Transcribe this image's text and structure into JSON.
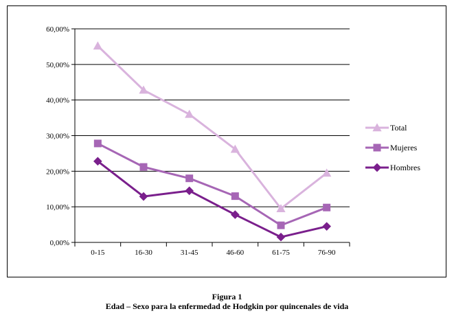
{
  "chart_data": {
    "type": "line",
    "categories": [
      "0-15",
      "16-30",
      "31-45",
      "46-60",
      "61-75",
      "76-90"
    ],
    "y_ticks": [
      "0,00%",
      "10,00%",
      "20,00%",
      "30,00%",
      "40,00%",
      "50,00%",
      "60,00%"
    ],
    "ylim": [
      0,
      60
    ],
    "grid": true,
    "legend_position": "right",
    "series": [
      {
        "name": "Total",
        "marker": "triangle",
        "color": "#d9b3dd",
        "values": [
          55.2,
          42.8,
          36.0,
          26.2,
          9.5,
          19.5
        ]
      },
      {
        "name": "Mujeres",
        "marker": "square",
        "color": "#a666b5",
        "values": [
          27.8,
          21.2,
          18.0,
          13.0,
          4.8,
          9.8
        ]
      },
      {
        "name": "Hombres",
        "marker": "diamond",
        "color": "#7a1f8c",
        "values": [
          22.8,
          12.9,
          14.5,
          7.8,
          1.5,
          4.5
        ]
      }
    ]
  },
  "caption": {
    "figure_label": "Figura 1",
    "title": "Edad – Sexo para la enfermedad de Hodgkin por quincenales de vida"
  }
}
